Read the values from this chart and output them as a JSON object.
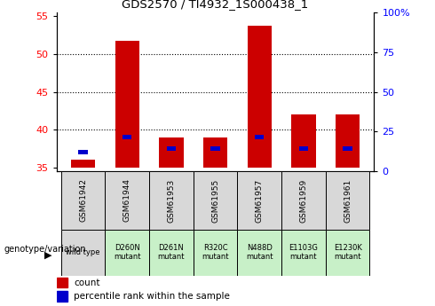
{
  "title": "GDS2570 / TI4932_1S000438_1",
  "samples": [
    "GSM61942",
    "GSM61944",
    "GSM61953",
    "GSM61955",
    "GSM61957",
    "GSM61959",
    "GSM61961"
  ],
  "genotypes": [
    "wild type",
    "D260N\nmutant",
    "D261N\nmutant",
    "R320C\nmutant",
    "N488D\nmutant",
    "E1103G\nmutant",
    "E1230K\nmutant"
  ],
  "genotype_is_wild": [
    true,
    false,
    false,
    false,
    false,
    false,
    false
  ],
  "counts": [
    36.0,
    51.7,
    39.0,
    39.0,
    53.7,
    42.0,
    42.0
  ],
  "percentile_values": [
    37.0,
    39.0,
    37.5,
    37.5,
    39.0,
    37.5,
    37.5
  ],
  "baseline": 35,
  "ylim_left": [
    34.5,
    55.5
  ],
  "ylim_right": [
    0,
    100
  ],
  "yticks_left": [
    35,
    40,
    45,
    50,
    55
  ],
  "yticks_right": [
    0,
    25,
    50,
    75,
    100
  ],
  "ytick_right_labels": [
    "0",
    "25",
    "50",
    "75",
    "100%"
  ],
  "bar_color": "#cc0000",
  "percentile_color": "#0000cc",
  "bar_width": 0.55,
  "bg_color_sample": "#d8d8d8",
  "bg_color_wild": "#d8d8d8",
  "bg_color_mutant": "#c8f0c8",
  "legend_count_label": "count",
  "legend_percentile_label": "percentile rank within the sample",
  "genotype_label": "genotype/variation"
}
